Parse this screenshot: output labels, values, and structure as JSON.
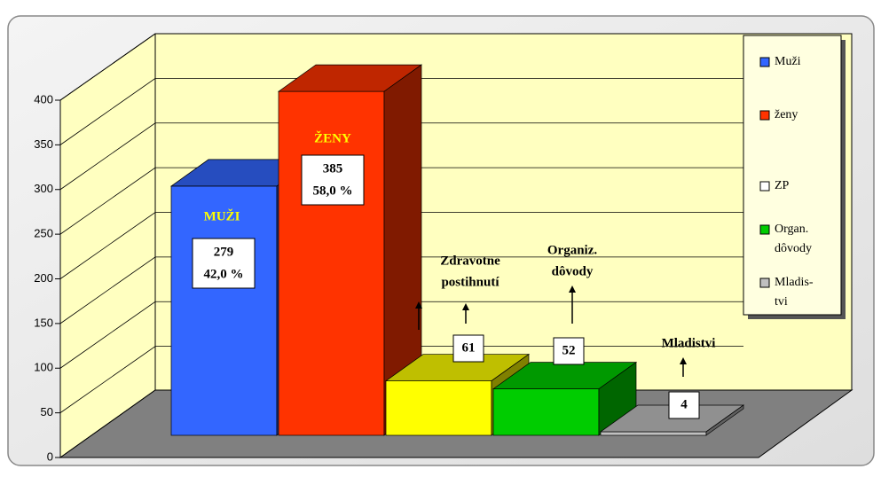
{
  "chart_data": {
    "type": "bar3d",
    "categories": [
      [
        "MUŽI"
      ],
      [
        "ŽENY"
      ],
      [
        "Zdravotne",
        "postihnutí"
      ],
      [
        "Organiz.",
        "dôvody"
      ],
      [
        "Mladistvi"
      ]
    ],
    "values": [
      279,
      385,
      61,
      52,
      4
    ],
    "percent_labels": [
      "42,0 %",
      "58,0 %"
    ],
    "colors": [
      "#3366ff",
      "#ff3300",
      "#ffff00",
      "#00cc00",
      "#c0c0c0"
    ],
    "legend": [
      {
        "label": [
          "Muži"
        ],
        "color": "#3366ff"
      },
      {
        "label": [
          "ženy"
        ],
        "color": "#ff3300"
      },
      {
        "label": [
          "ZP"
        ],
        "color": "#ffffff"
      },
      {
        "label": [
          "Organ.",
          "dôvody"
        ],
        "color": "#00cc00"
      },
      {
        "label": [
          "Mladis-",
          "tvi"
        ],
        "color": "#c0c0c0"
      }
    ],
    "ylim": [
      0,
      400
    ],
    "yticks": [
      0,
      50,
      100,
      150,
      200,
      250,
      300,
      350,
      400
    ],
    "grid": true
  }
}
